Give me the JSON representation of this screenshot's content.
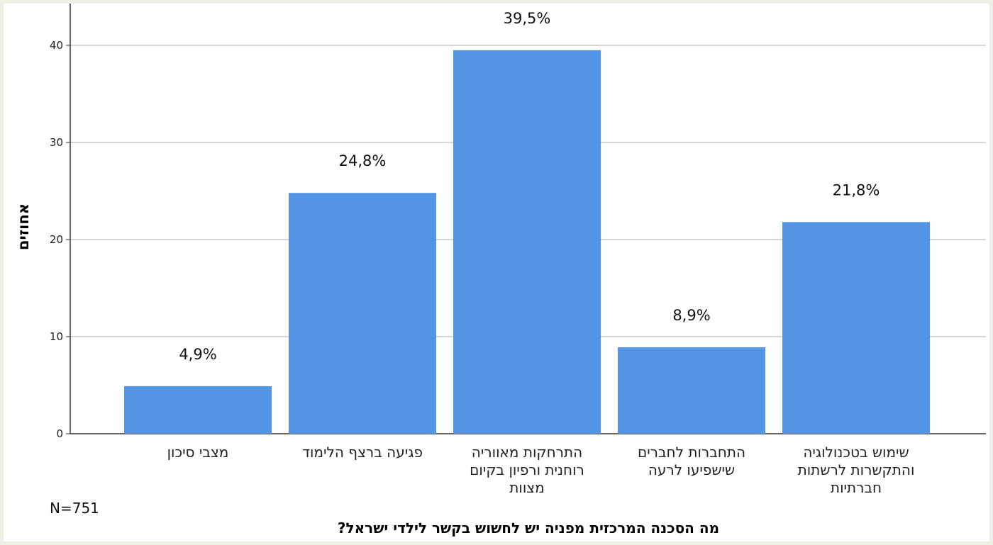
{
  "footnote": "N=751",
  "chart_data": {
    "type": "bar",
    "categories": [
      "מצבי סיכון",
      "פגיעה ברצף הלימוד",
      "התרחקות מאווריה רוחנית ורפיון בקיום מצוות",
      "התחברות לחברים שישפיעו לרעה",
      "שימוש בטכנולוגיה והתקשרות לרשתות חברתיות"
    ],
    "category_lines": [
      [
        "מצבי סיכון"
      ],
      [
        "פגיעה ברצף הלימוד"
      ],
      [
        "התרחקות מאווריה",
        "רוחנית ורפיון בקיום",
        "מצוות"
      ],
      [
        "התחברות לחברים",
        "שישפיעו לרעה"
      ],
      [
        "שימוש בטכנולוגיה",
        "והתקשרות לרשתות",
        "חברתיות"
      ]
    ],
    "values": [
      4.9,
      24.8,
      39.5,
      8.9,
      21.8
    ],
    "data_labels": [
      "4,9%",
      "24,8%",
      "39,5%",
      "8,9%",
      "21,8%"
    ],
    "title": "",
    "xlabel": "מה הסכנה המרכזית מפניה יש לחשוש בקשר לילדי ישראל?",
    "ylabel": "אחוזים",
    "ylim": [
      0,
      40
    ],
    "yticks": [
      0,
      10,
      20,
      30,
      40
    ],
    "grid": true,
    "bar_color": "#5494e4"
  }
}
